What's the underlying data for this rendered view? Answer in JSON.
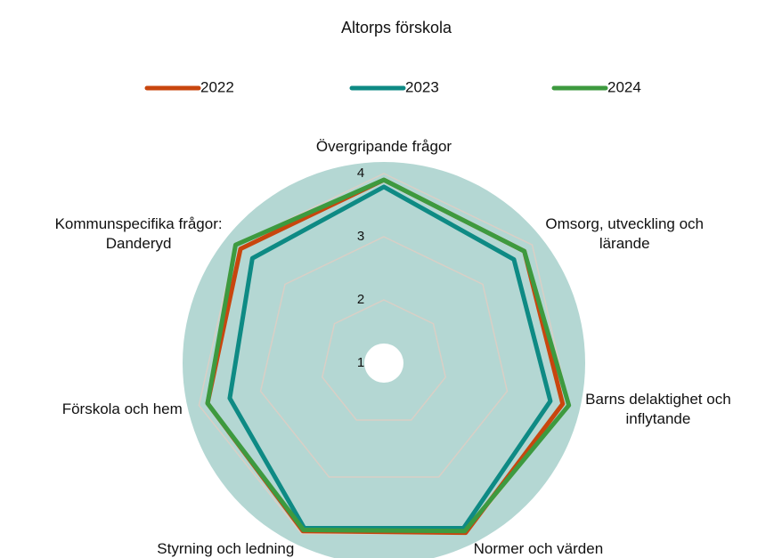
{
  "chart_data": {
    "type": "radar",
    "title": "Altorps förskola",
    "categories": [
      "Övergripande frågor",
      "Omsorg, utveckling och\nlärande",
      "Barns delaktighet och\ninflytande",
      "Normer och värden",
      "Styrning och ledning",
      "Förskola och hem",
      "Kommunspecifika frågor:\nDanderyd"
    ],
    "series": [
      {
        "name": "2022",
        "color": "#c8460e",
        "values": [
          3.9,
          3.84,
          3.9,
          3.98,
          3.95,
          3.86,
          3.9
        ]
      },
      {
        "name": "2023",
        "color": "#0e8a84",
        "values": [
          3.79,
          3.63,
          3.7,
          3.9,
          3.9,
          3.5,
          3.66
        ]
      },
      {
        "name": "2024",
        "color": "#3d9a3f",
        "values": [
          3.9,
          3.84,
          4.0,
          3.95,
          3.93,
          3.86,
          4.0
        ]
      }
    ],
    "ylim": [
      1,
      4
    ],
    "yticks": [
      1,
      2,
      3,
      4
    ],
    "grid": true,
    "legend": "top"
  }
}
